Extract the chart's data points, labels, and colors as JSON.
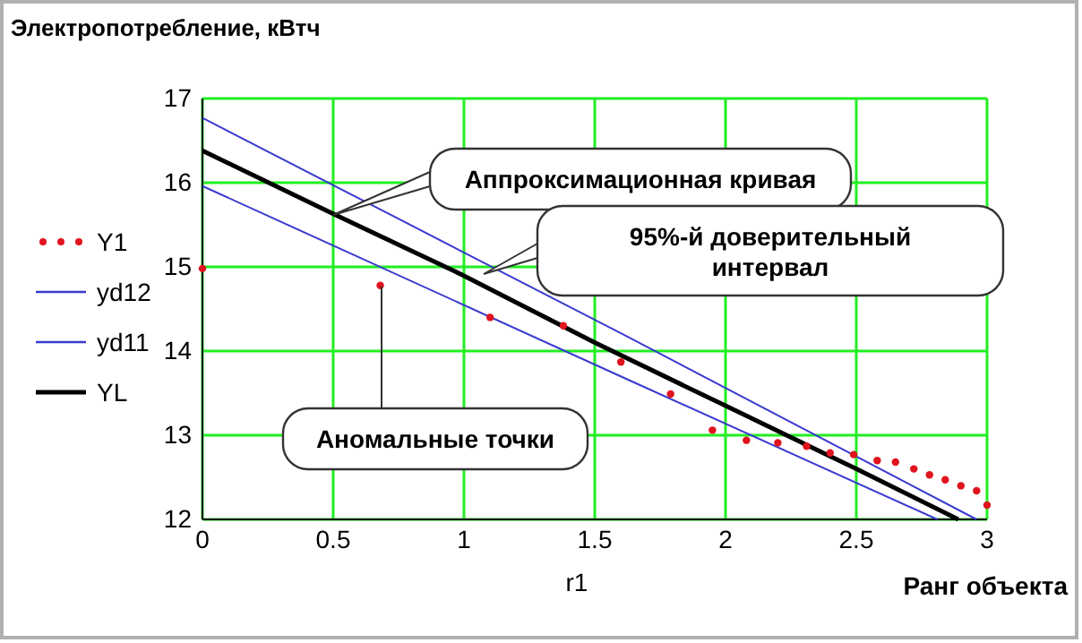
{
  "chart_data": {
    "type": "line",
    "ylabel": "Электропотребление, кВтч",
    "xlabel": "r1",
    "xlim": [
      0,
      3
    ],
    "ylim": [
      12,
      17
    ],
    "xticks": [
      0,
      0.5,
      1,
      1.5,
      2,
      2.5,
      3
    ],
    "yticks": [
      12,
      13,
      14,
      15,
      16,
      17
    ],
    "grid": true,
    "legend": "left",
    "series": [
      {
        "name": "Y1",
        "type": "scatter",
        "marker": "circle",
        "color": "#e0141e",
        "x": [
          0,
          0.68,
          1.1,
          1.38,
          1.6,
          1.79,
          1.95,
          2.08,
          2.2,
          2.31,
          2.4,
          2.49,
          2.58,
          2.65,
          2.72,
          2.78,
          2.84,
          2.9,
          2.96,
          3.0
        ],
        "values": [
          14.98,
          14.78,
          14.4,
          14.3,
          13.87,
          13.49,
          13.06,
          12.94,
          12.91,
          12.87,
          12.79,
          12.77,
          12.7,
          12.68,
          12.6,
          12.53,
          12.47,
          12.4,
          12.34,
          12.17
        ]
      },
      {
        "name": "yd12",
        "line_style": "solid",
        "color": "#3a3ad0",
        "x": [
          0,
          1.62,
          2.96
        ],
        "values": [
          16.77,
          14.18,
          12.0
        ]
      },
      {
        "name": "yd11",
        "line_style": "solid",
        "color": "#3a3ad0",
        "x": [
          0,
          1.62,
          2.81
        ],
        "values": [
          15.96,
          13.67,
          12.0
        ]
      },
      {
        "name": "YL",
        "line_style": "solid",
        "color": "#000000",
        "x": [
          0,
          0.5,
          0.99,
          1.5,
          2,
          2.5,
          2.89
        ],
        "values": [
          16.38,
          15.63,
          14.91,
          14.1,
          13.35,
          12.6,
          12.0
        ]
      }
    ],
    "annotations": [
      "Аппроксимационная кривая",
      "95%-й доверительный\nинтервал",
      "Аномальные точки",
      "Ранг объекта"
    ]
  }
}
